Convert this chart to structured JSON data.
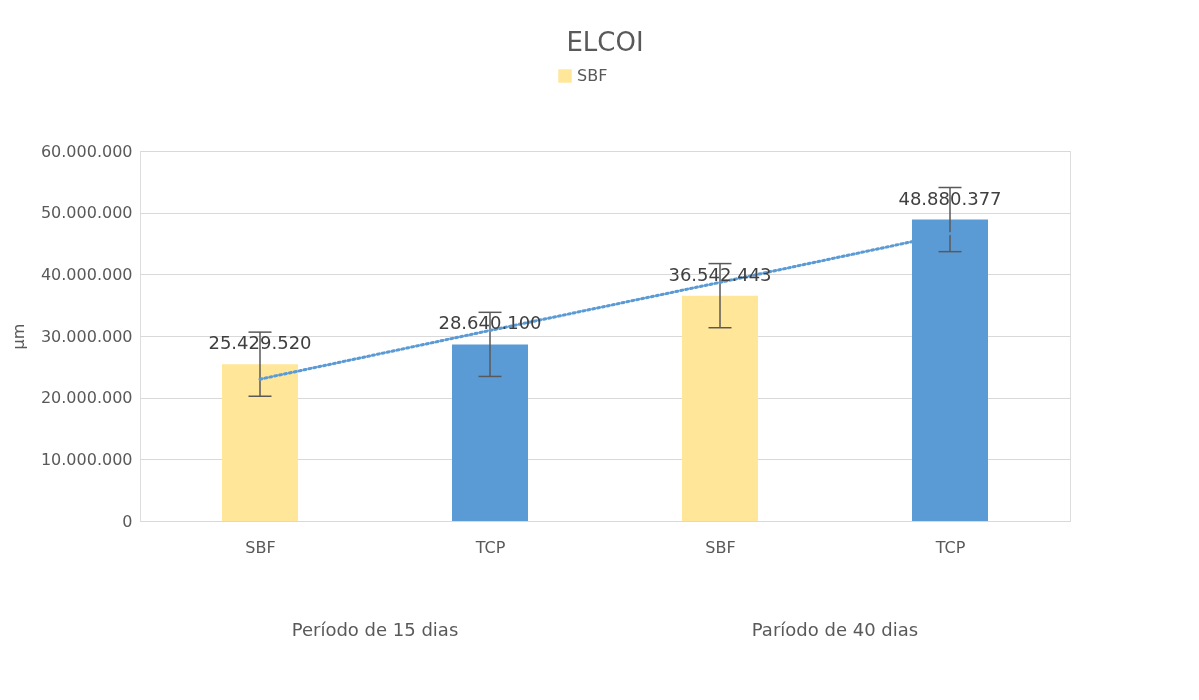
{
  "chart_data": {
    "type": "bar",
    "title": "ELCOI",
    "ylabel": "µm",
    "categories": [
      "SBF",
      "TCP",
      "SBF",
      "TCP"
    ],
    "series": [
      {
        "name": "SBF",
        "color": "#ffe699",
        "colors": [
          "#ffe699",
          "#5b9bd5",
          "#ffe699",
          "#5b9bd5"
        ],
        "values": [
          25429520,
          28640100,
          36542443,
          48880377
        ],
        "errors": [
          5200000,
          5200000,
          5200000,
          5200000
        ],
        "value_labels": [
          "25.429.520",
          "28.640.100",
          "36.542.443",
          "48.880.377"
        ]
      },
      {
        "type": "line",
        "color": "#5b9bd5",
        "line_style": "dotted",
        "values": [
          23000000,
          30900000,
          38700000,
          46600000
        ]
      }
    ],
    "ylim": [
      0,
      60000000
    ],
    "yticks": [
      {
        "value": 0,
        "label": "0"
      },
      {
        "value": 10000000,
        "label": "10.000.000"
      },
      {
        "value": 20000000,
        "label": "20.000.000"
      },
      {
        "value": 30000000,
        "label": "30.000.000"
      },
      {
        "value": 40000000,
        "label": "40.000.000"
      },
      {
        "value": 50000000,
        "label": "50.000.000"
      },
      {
        "value": 60000000,
        "label": "60.000.000"
      }
    ],
    "grid": "y",
    "legend": "top",
    "annotations": [
      "Período de 15 dias",
      "Paríodo de 40 dias"
    ]
  }
}
